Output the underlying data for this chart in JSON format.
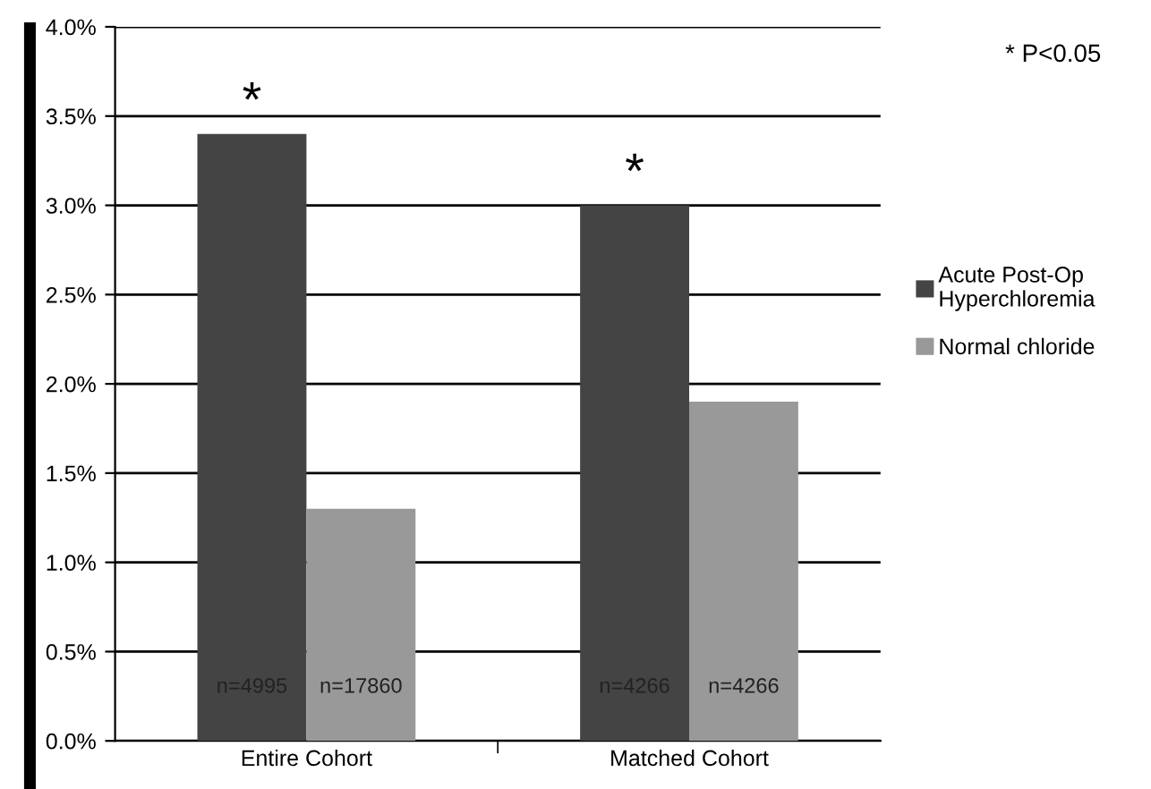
{
  "chart_data": {
    "type": "bar",
    "categories": [
      "Entire Cohort",
      "Matched Cohort"
    ],
    "series": [
      {
        "name": "Acute Post-Op Hyperchloremia",
        "color": "#444444",
        "values": [
          3.4,
          3.0
        ]
      },
      {
        "name": "Normal chloride",
        "color": "#999999",
        "values": [
          1.3,
          1.9
        ]
      }
    ],
    "ylim": [
      0,
      4
    ],
    "yticks": [
      {
        "value": 0,
        "label": "0.0%"
      },
      {
        "value": 0.5,
        "label": "0.5%"
      },
      {
        "value": 1,
        "label": "1.0%"
      },
      {
        "value": 1.5,
        "label": "1.5%"
      },
      {
        "value": 2,
        "label": "2.0%"
      },
      {
        "value": 2.5,
        "label": "2.5%"
      },
      {
        "value": 3,
        "label": "3.0%"
      },
      {
        "value": 3.5,
        "label": "3.5%"
      },
      {
        "value": 4,
        "label": "4.0%"
      }
    ],
    "grid": "y",
    "legend": "right",
    "annotations": [
      "*",
      "*",
      "n=4995",
      "n=17860",
      "n=4266",
      "n=4266",
      "* P<0.05"
    ]
  }
}
